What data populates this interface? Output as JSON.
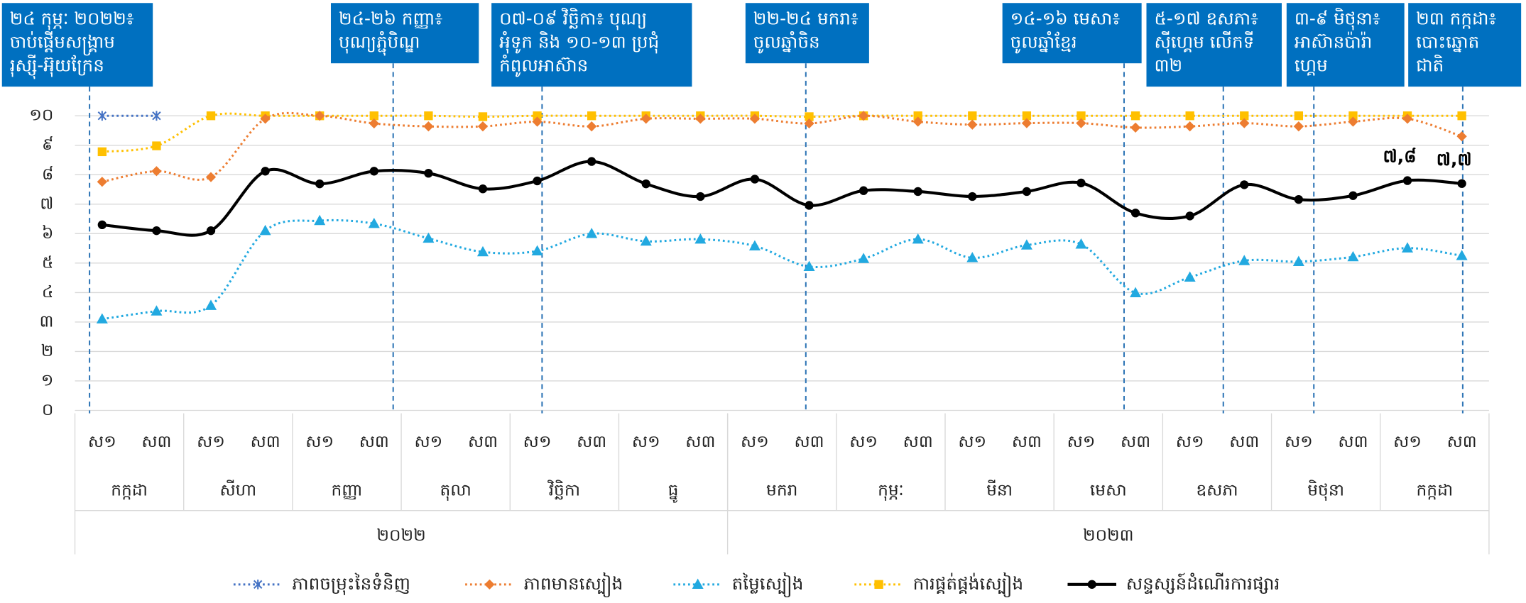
{
  "chart_data": {
    "type": "line",
    "categories": [
      "ស១",
      "ស៣",
      "ស១",
      "ស៣",
      "ស១",
      "ស៣",
      "ស១",
      "ស៣",
      "ស១",
      "ស៣",
      "ស១",
      "ស៣",
      "ស១",
      "ស៣",
      "ស១",
      "ស៣",
      "ស១",
      "ស៣",
      "ស១",
      "ស៣",
      "ស១",
      "ស៣",
      "ស១",
      "ស៣",
      "ស១",
      "ស៣"
    ],
    "months": [
      "កក្កដា",
      "សីហា",
      "កញ្ញា",
      "តុលា",
      "វិច្ឆិកា",
      "ធ្នូ",
      "មករា",
      "កុម្ភៈ",
      "មីនា",
      "មេសា",
      "ឧសភា",
      "មិថុនា",
      "កក្កដា"
    ],
    "years": [
      "២០២២",
      "២០២៣"
    ],
    "ylim": [
      0,
      10
    ],
    "yticks": [
      {
        "value": 0,
        "label": "០"
      },
      {
        "value": 1,
        "label": "១"
      },
      {
        "value": 2,
        "label": "២"
      },
      {
        "value": 3,
        "label": "៣"
      },
      {
        "value": 4,
        "label": "៤"
      },
      {
        "value": 5,
        "label": "៥"
      },
      {
        "value": 6,
        "label": "៦"
      },
      {
        "value": 7,
        "label": "៧"
      },
      {
        "value": 8,
        "label": "៨"
      },
      {
        "value": 9,
        "label": "៩"
      },
      {
        "value": 10,
        "label": "១០"
      }
    ],
    "grid": true,
    "series": [
      {
        "name": "ភាពចម្រុះនៃទំនិញ",
        "color": "#4472c4",
        "marker": "star",
        "dash": "dot",
        "values": [
          10,
          10,
          null,
          null,
          null,
          null,
          null,
          null,
          null,
          null,
          null,
          null,
          null,
          null,
          null,
          null,
          null,
          null,
          null,
          null,
          null,
          null,
          null,
          null,
          null,
          null
        ]
      },
      {
        "name": "ភាពមានស្បៀង",
        "color": "#ed7d31",
        "marker": "diamond",
        "dash": "dot",
        "values": [
          7.76,
          8.12,
          7.92,
          9.9,
          10,
          9.74,
          9.64,
          9.64,
          9.8,
          9.64,
          9.9,
          9.9,
          9.9,
          9.74,
          10,
          9.8,
          9.7,
          9.75,
          9.75,
          9.6,
          9.64,
          9.75,
          9.64,
          9.8,
          9.9,
          9.3
        ]
      },
      {
        "name": "តម្លៃស្បៀង",
        "color": "#22a9e0",
        "marker": "triangle",
        "dash": "dot",
        "values": [
          3.1,
          3.37,
          3.56,
          6.1,
          6.44,
          6.34,
          5.84,
          5.38,
          5.41,
          6.0,
          5.74,
          5.81,
          5.58,
          4.88,
          5.15,
          5.81,
          5.18,
          5.61,
          5.64,
          3.99,
          4.52,
          5.08,
          5.05,
          5.21,
          5.51,
          5.25
        ]
      },
      {
        "name": "ការផ្គត់ផ្គង់ស្បៀង",
        "color": "#ffc000",
        "marker": "square",
        "dash": "dot",
        "values": [
          8.78,
          8.98,
          10,
          10,
          10,
          10,
          10,
          9.97,
          10,
          10,
          10,
          10,
          10,
          9.97,
          10,
          10,
          10,
          10,
          10,
          10,
          10,
          10,
          10,
          10,
          10,
          10
        ]
      },
      {
        "name": "សន្ទស្សន៍ដំណើរការផ្សារ",
        "color": "#000000",
        "marker": "circle",
        "dash": "solid",
        "values": [
          6.3,
          6.1,
          6.1,
          8.12,
          7.69,
          8.12,
          8.05,
          7.52,
          7.79,
          8.45,
          7.69,
          7.26,
          7.85,
          6.96,
          7.46,
          7.43,
          7.26,
          7.43,
          7.72,
          6.7,
          6.6,
          7.66,
          7.16,
          7.29,
          7.8,
          7.7
        ],
        "value_labels": [
          null,
          null,
          null,
          null,
          null,
          null,
          null,
          null,
          null,
          null,
          null,
          null,
          null,
          null,
          null,
          null,
          null,
          null,
          null,
          null,
          null,
          null,
          null,
          null,
          "៧,៨",
          "៧,៧"
        ]
      }
    ],
    "annotations": [
      {
        "lines": [
          "២៤ កុម្ភៈ ២០២២៖",
          "ចាប់ផ្ដើមសង្គ្រាម",
          "រុស្ស៊ី-អ៊ុយក្រែន"
        ]
      },
      {
        "lines": [
          "២៤-២៦ កញ្ញា៖",
          "បុណ្យភ្ជុំបិណ្ឌ"
        ]
      },
      {
        "lines": [
          "០៧-០៩ វិច្ឆិកា៖ បុណ្យ",
          "អុំទូក និង ១០-១៣ ប្រជុំ",
          "កំពូលអាស៊ាន"
        ]
      },
      {
        "lines": [
          "២២-២៤ មករា៖",
          "ចូលឆ្នាំចិន"
        ]
      },
      {
        "lines": [
          "១៤-១៦ មេសា៖",
          "ចូលឆ្នាំខ្មែរ"
        ]
      },
      {
        "lines": [
          "៥-១៧ ឧសភា៖",
          "ស៊ីហ្គេម លើកទី",
          "៣២"
        ]
      },
      {
        "lines": [
          "៣-៩ មិថុនា៖",
          "អាស៊ានប៉ារ៉ា",
          "ហ្គេម"
        ]
      },
      {
        "lines": [
          "២៣ កក្កដា៖",
          "បោះឆ្នោត",
          "ជាតិ"
        ]
      }
    ]
  }
}
